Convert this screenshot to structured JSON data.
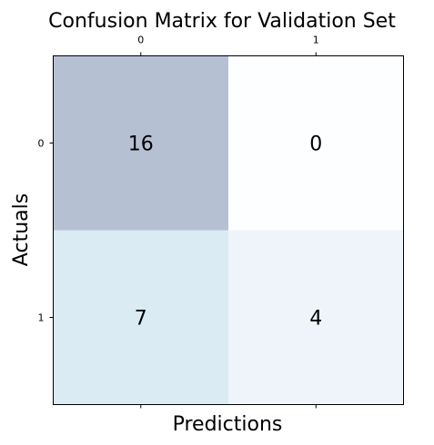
{
  "chart_data": {
    "type": "heatmap",
    "title": "Confusion Matrix for Validation Set",
    "xlabel": "Predictions",
    "ylabel": "Actuals",
    "x_categories": [
      "0",
      "1"
    ],
    "y_categories": [
      "0",
      "1"
    ],
    "values": [
      [
        16,
        0
      ],
      [
        7,
        4
      ]
    ],
    "xaxis_ticks_position": "top",
    "grid": false,
    "colormap": "Blues"
  }
}
